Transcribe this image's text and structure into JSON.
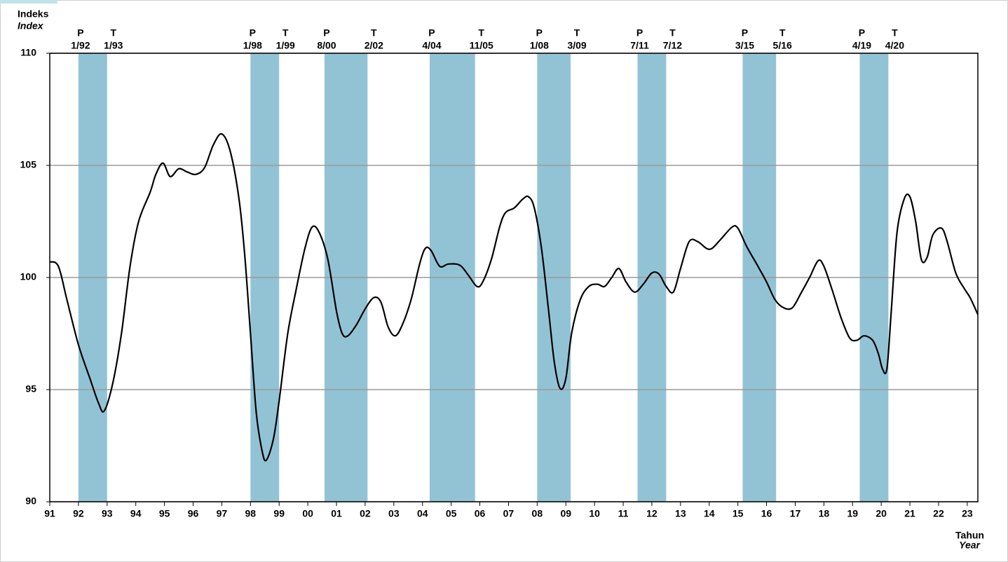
{
  "chart_data": {
    "type": "line",
    "y_label": "Indeks",
    "y_label_en": "Index",
    "x_label": "Tahun",
    "x_label_en": "Year",
    "peak_label": "P",
    "trough_label": "T",
    "color": "#000000",
    "band_color": "#92c3d5",
    "grid": true,
    "xlim": [
      1991,
      2023.37
    ],
    "ylim": [
      90,
      110
    ],
    "yticks": [
      90,
      95,
      100,
      105,
      110
    ],
    "xticks": [
      {
        "value": 1991,
        "label": "91"
      },
      {
        "value": 1992,
        "label": "92"
      },
      {
        "value": 1993,
        "label": "93"
      },
      {
        "value": 1994,
        "label": "94"
      },
      {
        "value": 1995,
        "label": "95"
      },
      {
        "value": 1996,
        "label": "96"
      },
      {
        "value": 1997,
        "label": "97"
      },
      {
        "value": 1998,
        "label": "98"
      },
      {
        "value": 1999,
        "label": "99"
      },
      {
        "value": 2000,
        "label": "00"
      },
      {
        "value": 2001,
        "label": "01"
      },
      {
        "value": 2002,
        "label": "02"
      },
      {
        "value": 2003,
        "label": "03"
      },
      {
        "value": 2004,
        "label": "04"
      },
      {
        "value": 2005,
        "label": "05"
      },
      {
        "value": 2006,
        "label": "06"
      },
      {
        "value": 2007,
        "label": "07"
      },
      {
        "value": 2008,
        "label": "08"
      },
      {
        "value": 2009,
        "label": "09"
      },
      {
        "value": 2010,
        "label": "10"
      },
      {
        "value": 2011,
        "label": "11"
      },
      {
        "value": 2012,
        "label": "12"
      },
      {
        "value": 2013,
        "label": "13"
      },
      {
        "value": 2014,
        "label": "14"
      },
      {
        "value": 2015,
        "label": "15"
      },
      {
        "value": 2016,
        "label": "16"
      },
      {
        "value": 2017,
        "label": "17"
      },
      {
        "value": 2018,
        "label": "18"
      },
      {
        "value": 2019,
        "label": "19"
      },
      {
        "value": 2020,
        "label": "20"
      },
      {
        "value": 2021,
        "label": "21"
      },
      {
        "value": 2022,
        "label": "22"
      },
      {
        "value": 2023,
        "label": "23"
      }
    ],
    "bands": [
      {
        "peak": "1/92",
        "trough": "1/93",
        "start": 1992,
        "end": 1993
      },
      {
        "peak": "1/98",
        "trough": "1/99",
        "start": 1998,
        "end": 1999
      },
      {
        "peak": "8/00",
        "trough": "2/02",
        "start": 2000.583,
        "end": 2002.083
      },
      {
        "peak": "4/04",
        "trough": "11/05",
        "start": 2004.25,
        "end": 2005.833
      },
      {
        "peak": "1/08",
        "trough": "3/09",
        "start": 2008,
        "end": 2009.167
      },
      {
        "peak": "7/11",
        "trough": "7/12",
        "start": 2011.5,
        "end": 2012.5
      },
      {
        "peak": "3/15",
        "trough": "5/16",
        "start": 2015.167,
        "end": 2016.333
      },
      {
        "peak": "4/19",
        "trough": "4/20",
        "start": 2019.25,
        "end": 2020.25
      }
    ],
    "x": [
      1991.0,
      1991.3,
      1991.6,
      1992.0,
      1992.4,
      1992.7,
      1992.9,
      1993.2,
      1993.5,
      1993.8,
      1994.1,
      1994.5,
      1994.7,
      1994.95,
      1995.2,
      1995.5,
      1995.8,
      1996.1,
      1996.4,
      1996.7,
      1997.0,
      1997.3,
      1997.6,
      1997.8,
      1998.0,
      1998.2,
      1998.4,
      1998.55,
      1998.8,
      1999.0,
      1999.3,
      1999.6,
      1999.9,
      2000.15,
      2000.4,
      2000.7,
      2001.0,
      2001.2,
      2001.4,
      2001.7,
      2002.0,
      2002.3,
      2002.55,
      2002.8,
      2003.05,
      2003.3,
      2003.6,
      2003.9,
      2004.1,
      2004.3,
      2004.6,
      2004.9,
      2005.3,
      2005.6,
      2005.9,
      2006.1,
      2006.4,
      2006.7,
      2006.9,
      2007.2,
      2007.5,
      2007.7,
      2007.9,
      2008.15,
      2008.4,
      2008.6,
      2008.8,
      2009.0,
      2009.2,
      2009.5,
      2009.8,
      2010.1,
      2010.35,
      2010.6,
      2010.85,
      2011.1,
      2011.4,
      2011.7,
      2012.0,
      2012.25,
      2012.5,
      2012.75,
      2013.0,
      2013.3,
      2013.6,
      2013.9,
      2014.1,
      2014.4,
      2014.8,
      2015.0,
      2015.3,
      2015.7,
      2016.0,
      2016.3,
      2016.6,
      2016.9,
      2017.2,
      2017.5,
      2017.8,
      2018.0,
      2018.3,
      2018.6,
      2018.9,
      2019.15,
      2019.4,
      2019.7,
      2019.9,
      2020.05,
      2020.2,
      2020.35,
      2020.55,
      2020.8,
      2021.0,
      2021.2,
      2021.4,
      2021.6,
      2021.8,
      2022.1,
      2022.3,
      2022.6,
      2022.9,
      2023.1,
      2023.37
    ],
    "values": [
      100.7,
      100.5,
      99,
      97,
      95.5,
      94.4,
      94.05,
      95.3,
      97.5,
      100.5,
      102.5,
      103.8,
      104.6,
      105.1,
      104.5,
      104.85,
      104.7,
      104.6,
      104.9,
      105.9,
      106.4,
      105.6,
      103.5,
      101,
      97.5,
      94,
      92.3,
      91.85,
      92.8,
      94.5,
      97.5,
      99.5,
      101.3,
      102.25,
      102,
      100.8,
      98.5,
      97.5,
      97.4,
      97.9,
      98.6,
      99.1,
      98.9,
      97.8,
      97.4,
      97.9,
      99,
      100.6,
      101.3,
      101.2,
      100.5,
      100.6,
      100.55,
      100.1,
      99.6,
      99.8,
      100.8,
      102.3,
      102.9,
      103.1,
      103.5,
      103.6,
      103.1,
      101.3,
      98.5,
      96.2,
      95.05,
      95.5,
      97.5,
      99,
      99.6,
      99.7,
      99.6,
      100,
      100.4,
      99.8,
      99.35,
      99.7,
      100.2,
      100.15,
      99.6,
      99.35,
      100.4,
      101.6,
      101.6,
      101.3,
      101.3,
      101.7,
      102.25,
      102.2,
      101.4,
      100.5,
      99.8,
      99,
      98.65,
      98.65,
      99.3,
      100,
      100.75,
      100.5,
      99.4,
      98.2,
      97.3,
      97.2,
      97.4,
      97.2,
      96.6,
      95.9,
      95.95,
      98.5,
      102,
      103.5,
      103.6,
      102.5,
      100.8,
      100.9,
      101.9,
      102.2,
      101.6,
      100.2,
      99.5,
      99.1,
      98.35
    ]
  }
}
